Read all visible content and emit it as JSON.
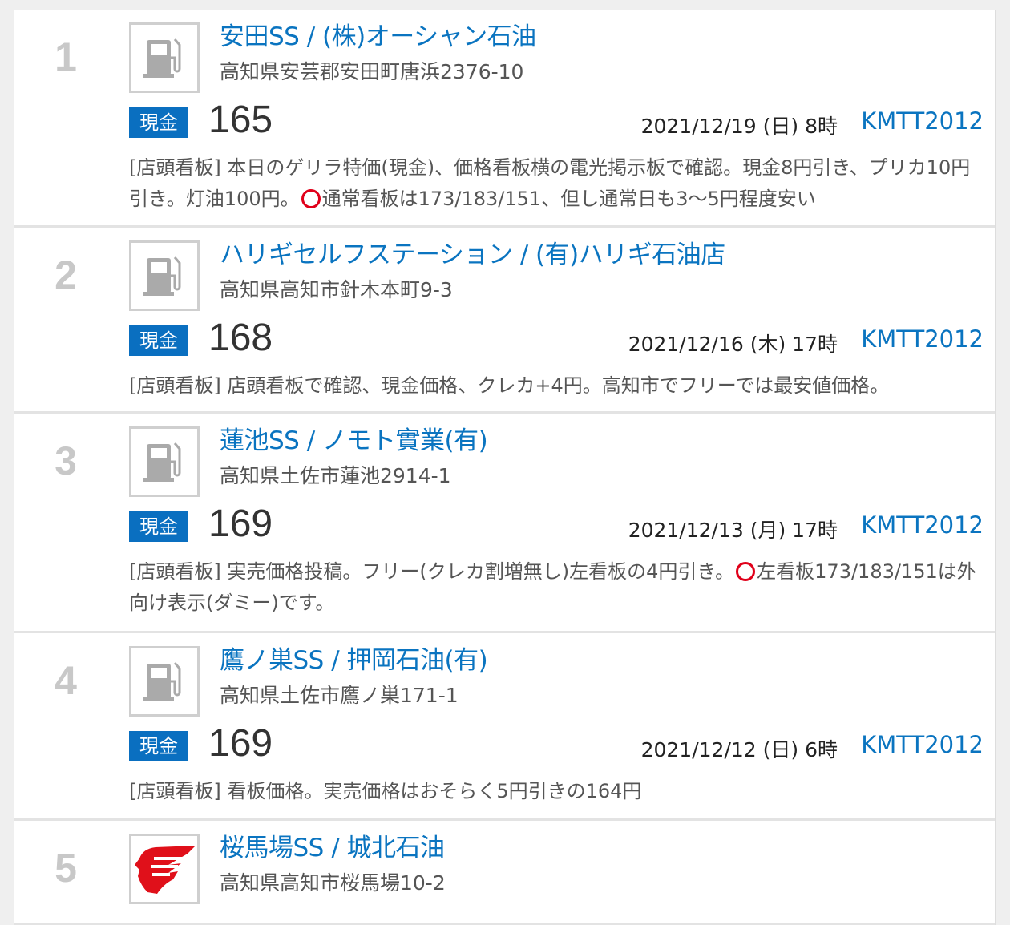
{
  "items": [
    {
      "rank": "1",
      "icon": "fuel-pump-icon",
      "title": "安田SS / (株)オーシャン石油",
      "address": "高知県安芸郡安田町唐浜2376-10",
      "badge": "現金",
      "price": "165",
      "date": "2021/12/19 (日) 8時",
      "user": "KMTT2012",
      "comment_a": "[店頭看板] 本日のゲリラ特価(現金)、価格看板横の電光掲示板で確認。現金8円引き、プリカ10円引き。灯油100円。",
      "comment_b": "通常看板は173/183/151、但し通常日も3〜5円程度安い"
    },
    {
      "rank": "2",
      "icon": "fuel-pump-icon",
      "title": "ハリギセルフステーション / (有)ハリギ石油店",
      "address": "高知県高知市針木本町9-3",
      "badge": "現金",
      "price": "168",
      "date": "2021/12/16 (木) 17時",
      "user": "KMTT2012",
      "comment_a": "[店頭看板] 店頭看板で確認、現金価格、クレカ+4円。高知市でフリーでは最安値価格。",
      "comment_b": ""
    },
    {
      "rank": "3",
      "icon": "fuel-pump-icon",
      "title": "蓮池SS / ノモト實業(有)",
      "address": "高知県土佐市蓮池2914-1",
      "badge": "現金",
      "price": "169",
      "date": "2021/12/13 (月) 17時",
      "user": "KMTT2012",
      "comment_a": "[店頭看板] 実売価格投稿。フリー(クレカ割増無し)左看板の4円引き。",
      "comment_b": "左看板173/183/151は外向け表示(ダミー)です。"
    },
    {
      "rank": "4",
      "icon": "fuel-pump-icon",
      "title": "鷹ノ巣SS / 押岡石油(有)",
      "address": "高知県土佐市鷹ノ巣171-1",
      "badge": "現金",
      "price": "169",
      "date": "2021/12/12 (日) 6時",
      "user": "KMTT2012",
      "comment_a": "[店頭看板] 看板価格。実売価格はおそらく5円引きの164円",
      "comment_b": ""
    },
    {
      "rank": "5",
      "icon": "idemitsu-logo-icon",
      "title": "桜馬場SS / 城北石油",
      "address": "高知県高知市桜馬場10-2"
    }
  ]
}
